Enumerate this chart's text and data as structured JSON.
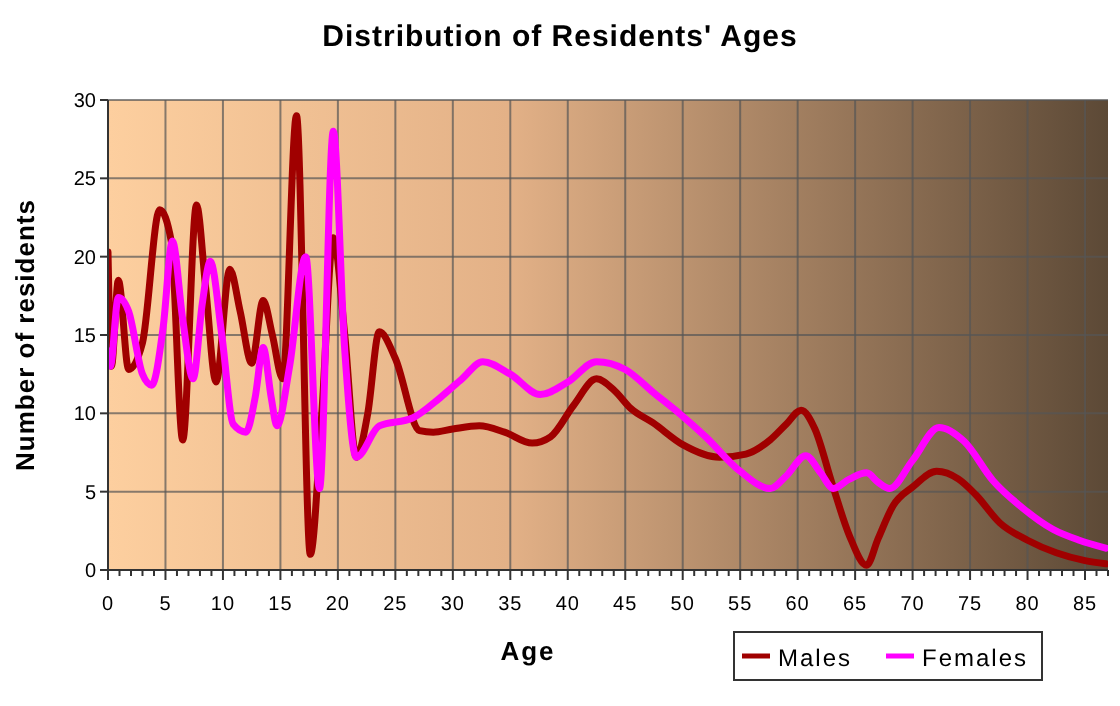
{
  "chart_data": {
    "type": "line",
    "title": "Distribution of Residents' Ages",
    "xlabel": "Age",
    "ylabel": "Number of residents",
    "xlim": [
      0,
      87
    ],
    "ylim": [
      0,
      30
    ],
    "yticks": [
      0,
      5,
      10,
      15,
      20,
      25,
      30
    ],
    "xticks": [
      0,
      {
        "value": 1,
        "label": null
      },
      {
        "value": 2,
        "label": null
      },
      {
        "value": 3,
        "label": null
      },
      {
        "value": 4,
        "label": null
      },
      5,
      {
        "value": 6,
        "label": null
      },
      {
        "value": 7,
        "label": null
      },
      {
        "value": 8,
        "label": null
      },
      {
        "value": 9,
        "label": null
      },
      10,
      {
        "value": 11,
        "label": null
      },
      {
        "value": 12,
        "label": null
      },
      {
        "value": 13,
        "label": null
      },
      {
        "value": 14,
        "label": null
      },
      15,
      {
        "value": 16,
        "label": null
      },
      {
        "value": 17,
        "label": null
      },
      {
        "value": 18,
        "label": null
      },
      {
        "value": 19,
        "label": null
      },
      20,
      {
        "value": 21,
        "label": null
      },
      {
        "value": 22,
        "label": null
      },
      {
        "value": 23,
        "label": null
      },
      {
        "value": 24,
        "label": null
      },
      25,
      {
        "value": 26,
        "label": null
      },
      {
        "value": 27,
        "label": null
      },
      {
        "value": 28,
        "label": null
      },
      {
        "value": 29,
        "label": null
      },
      30,
      {
        "value": 31,
        "label": null
      },
      {
        "value": 32,
        "label": null
      },
      {
        "value": 33,
        "label": null
      },
      {
        "value": 34,
        "label": null
      },
      35,
      {
        "value": 36,
        "label": null
      },
      {
        "value": 37,
        "label": null
      },
      {
        "value": 38,
        "label": null
      },
      {
        "value": 39,
        "label": null
      },
      40,
      {
        "value": 41,
        "label": null
      },
      {
        "value": 42,
        "label": null
      },
      {
        "value": 43,
        "label": null
      },
      {
        "value": 44,
        "label": null
      },
      45,
      {
        "value": 46,
        "label": null
      },
      {
        "value": 47,
        "label": null
      },
      {
        "value": 48,
        "label": null
      },
      {
        "value": 49,
        "label": null
      },
      50,
      {
        "value": 51,
        "label": null
      },
      {
        "value": 52,
        "label": null
      },
      {
        "value": 53,
        "label": null
      },
      {
        "value": 54,
        "label": null
      },
      55,
      {
        "value": 56,
        "label": null
      },
      {
        "value": 57,
        "label": null
      },
      {
        "value": 58,
        "label": null
      },
      {
        "value": 59,
        "label": null
      },
      60,
      {
        "value": 61,
        "label": null
      },
      {
        "value": 62,
        "label": null
      },
      {
        "value": 63,
        "label": null
      },
      {
        "value": 64,
        "label": null
      },
      65,
      {
        "value": 66,
        "label": null
      },
      {
        "value": 67,
        "label": null
      },
      {
        "value": 68,
        "label": null
      },
      {
        "value": 69,
        "label": null
      },
      70,
      {
        "value": 71,
        "label": null
      },
      {
        "value": 72,
        "label": null
      },
      {
        "value": 73,
        "label": null
      },
      {
        "value": 74,
        "label": null
      },
      75,
      {
        "value": 76,
        "label": null
      },
      {
        "value": 77,
        "label": null
      },
      {
        "value": 78,
        "label": null
      },
      {
        "value": 79,
        "label": null
      },
      80,
      {
        "value": 81,
        "label": null
      },
      {
        "value": 82,
        "label": null
      },
      {
        "value": 83,
        "label": null
      },
      {
        "value": 84,
        "label": null
      },
      85,
      {
        "value": 86,
        "label": null
      },
      {
        "value": 87,
        "label": null
      }
    ],
    "grid": true,
    "legend": "bottom right",
    "marker": "none",
    "line_style": "solid",
    "series": [
      {
        "name": "Males",
        "color": "#a00000",
        "x": [
          0,
          0.3,
          0.9,
          1.8,
          3,
          4.5,
          5.5,
          6.5,
          7.7,
          8.5,
          9.4,
          10.6,
          11.5,
          12.5,
          13.5,
          14.3,
          15.2,
          16.4,
          17.6,
          18.6,
          19.6,
          20.6,
          21.6,
          22.6,
          23.6,
          25,
          27.1,
          28.3,
          30,
          32.3,
          34.5,
          36.9,
          38.5,
          40.5,
          42.5,
          44,
          45.5,
          47.4,
          50,
          53.2,
          55.5,
          57.6,
          59,
          60.3,
          61.5,
          63,
          64.5,
          66,
          67,
          68.3,
          70,
          72.1,
          74,
          75.5,
          77.6,
          80,
          82.5,
          85,
          86.8
        ],
        "values": [
          20.3,
          13,
          18.5,
          12.8,
          14.5,
          23,
          21,
          8.3,
          23.3,
          18,
          12,
          19.2,
          16.5,
          13.2,
          17.2,
          15,
          12.2,
          29,
          1,
          10,
          21.2,
          15,
          7.2,
          10,
          15.2,
          13.5,
          8.9,
          8.8,
          9,
          9.2,
          8.8,
          8.1,
          8.5,
          10.5,
          12.2,
          11.5,
          10.3,
          9.4,
          8,
          7.2,
          7.4,
          8.3,
          9.3,
          10.2,
          9,
          5.5,
          2.2,
          0.3,
          2,
          4.1,
          5.3,
          6.3,
          5.8,
          4.8,
          3,
          1.9,
          1.1,
          0.6,
          0.4
        ]
      },
      {
        "name": "Females",
        "color": "#ff00ff",
        "x": [
          0,
          0.2,
          0.9,
          1.8,
          3,
          3.8,
          4.8,
          5.6,
          6.5,
          7.4,
          8.2,
          8.9,
          9.9,
          10.9,
          12,
          12.8,
          13.5,
          14.2,
          14.7,
          15.8,
          17.2,
          18.4,
          19.6,
          20.6,
          21.6,
          23.6,
          26.5,
          28.9,
          30.8,
          32.6,
          35,
          37.6,
          40,
          42.5,
          45,
          47.5,
          49.7,
          52,
          55,
          57.6,
          59,
          60.7,
          62,
          63.1,
          64.5,
          66,
          67,
          68,
          70,
          72.3,
          74.5,
          77,
          79.5,
          82.2,
          84.5,
          86.8
        ],
        "values": [
          14,
          13,
          17.4,
          16.5,
          12.5,
          11.8,
          15.5,
          21,
          16,
          12.2,
          17,
          19.7,
          15,
          9.3,
          8.8,
          11,
          14.2,
          11,
          9.2,
          13,
          20,
          5.2,
          28,
          14,
          7.2,
          9.2,
          9.7,
          11,
          12.2,
          13.3,
          12.5,
          11.2,
          12,
          13.3,
          12.8,
          11.3,
          10,
          8.5,
          6.3,
          5.2,
          6,
          7.3,
          6.2,
          5.2,
          5.8,
          6.2,
          5.6,
          5.2,
          7,
          9.1,
          8.2,
          5.7,
          4,
          2.6,
          1.9,
          1.4
        ]
      }
    ]
  }
}
